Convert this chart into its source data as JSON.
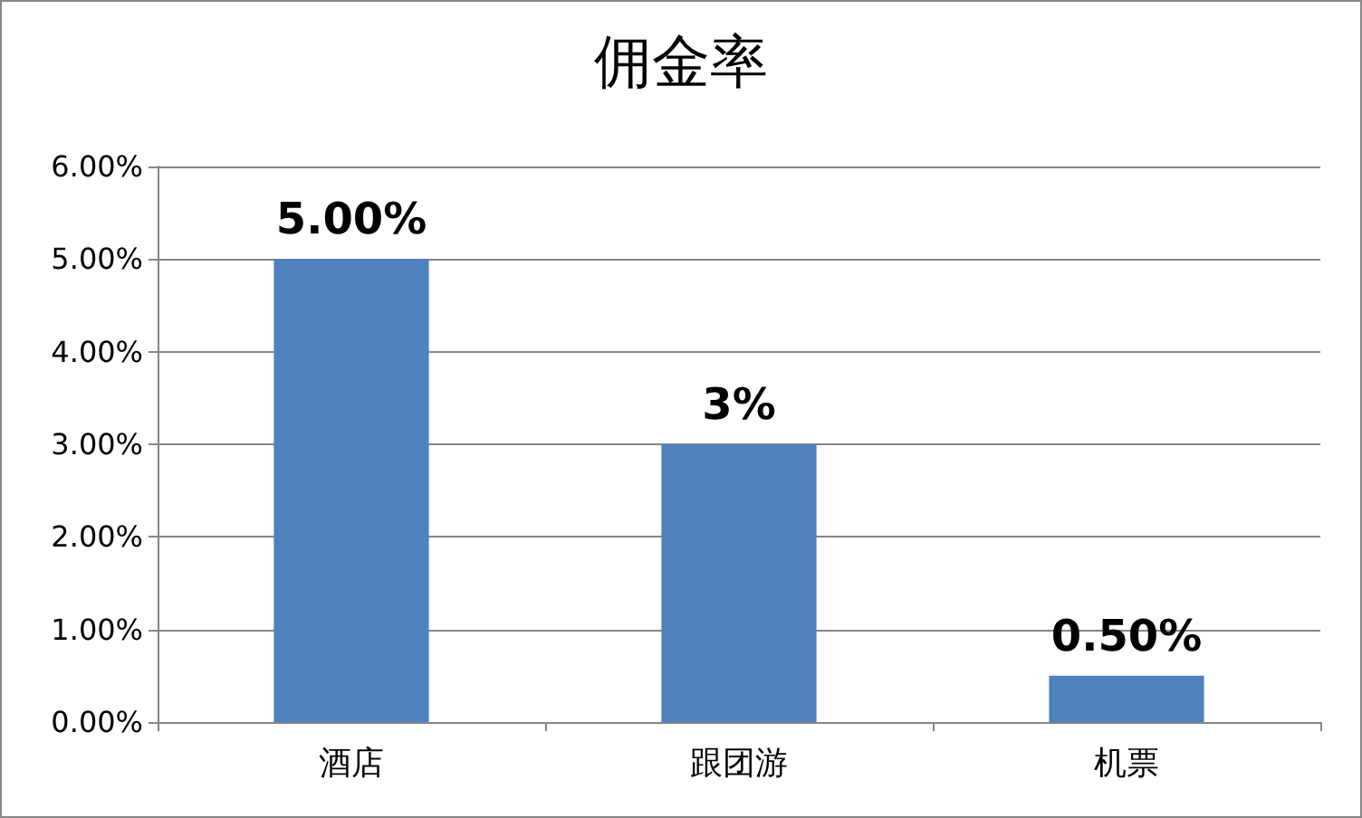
{
  "chart_data": {
    "type": "bar",
    "title": "佣金率",
    "categories": [
      "酒店",
      "跟团游",
      "机票"
    ],
    "values": [
      5,
      3,
      0.5
    ],
    "value_labels": [
      "5.00%",
      "3%",
      "0.50%"
    ],
    "color": "#4f81bd",
    "ylim": [
      0,
      6
    ],
    "yticks": [
      {
        "value": 0,
        "label": "0.00%"
      },
      {
        "value": 1,
        "label": "1.00%"
      },
      {
        "value": 2,
        "label": "2.00%"
      },
      {
        "value": 3,
        "label": "3.00%"
      },
      {
        "value": 4,
        "label": "4.00%"
      },
      {
        "value": 5,
        "label": "5.00%"
      },
      {
        "value": 6,
        "label": "6.00%"
      }
    ],
    "grid": "y"
  }
}
